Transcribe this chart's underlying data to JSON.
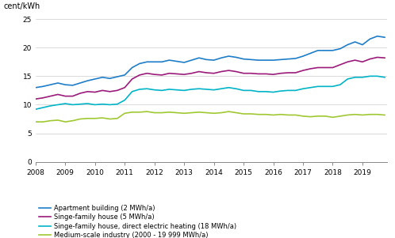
{
  "title": "",
  "ylabel": "cent/kWh",
  "xlim": [
    2008.0,
    2019.83
  ],
  "ylim": [
    0,
    25
  ],
  "yticks": [
    0,
    5,
    10,
    15,
    20,
    25
  ],
  "xticks": [
    2008,
    2009,
    2010,
    2011,
    2012,
    2013,
    2014,
    2015,
    2016,
    2017,
    2018,
    2019
  ],
  "colors": {
    "apartment": "#1e7dc8",
    "single_family": "#9b1a7a",
    "direct_heating": "#00b4c8",
    "industry": "#a0c832"
  },
  "legend_labels": [
    "Apartment building (2 MWh/a)",
    "Singe-family house (5 MWh/a)",
    "Singe-family house, direct electric heating (18 MWh/a)",
    "Medium-scale industry (2000 - 19 999 MWh/a)"
  ],
  "apartment": [
    13.0,
    13.2,
    13.5,
    13.8,
    13.5,
    13.4,
    13.8,
    14.2,
    14.5,
    14.8,
    14.6,
    14.9,
    15.2,
    16.5,
    17.2,
    17.5,
    17.5,
    17.5,
    17.8,
    17.6,
    17.4,
    17.8,
    18.2,
    17.9,
    17.8,
    18.2,
    18.5,
    18.3,
    18.0,
    17.9,
    17.8,
    17.8,
    17.8,
    17.9,
    18.0,
    18.1,
    18.5,
    19.0,
    19.5,
    19.5,
    19.5,
    19.8,
    20.5,
    21.0,
    20.5,
    21.5,
    22.0,
    21.8
  ],
  "single_family": [
    11.0,
    11.2,
    11.5,
    11.8,
    11.5,
    11.5,
    12.0,
    12.3,
    12.2,
    12.5,
    12.3,
    12.5,
    13.0,
    14.5,
    15.2,
    15.5,
    15.3,
    15.2,
    15.5,
    15.4,
    15.3,
    15.5,
    15.8,
    15.6,
    15.5,
    15.8,
    16.0,
    15.8,
    15.5,
    15.5,
    15.4,
    15.4,
    15.3,
    15.5,
    15.6,
    15.6,
    16.0,
    16.3,
    16.5,
    16.5,
    16.5,
    17.0,
    17.5,
    17.8,
    17.5,
    18.0,
    18.3,
    18.2
  ],
  "direct_heating": [
    9.2,
    9.5,
    9.8,
    10.0,
    10.2,
    10.0,
    10.1,
    10.2,
    10.0,
    10.1,
    10.0,
    10.1,
    10.8,
    12.3,
    12.7,
    12.8,
    12.6,
    12.5,
    12.7,
    12.6,
    12.5,
    12.7,
    12.8,
    12.7,
    12.6,
    12.8,
    13.0,
    12.8,
    12.5,
    12.5,
    12.3,
    12.3,
    12.2,
    12.4,
    12.5,
    12.5,
    12.8,
    13.0,
    13.2,
    13.2,
    13.2,
    13.5,
    14.5,
    14.8,
    14.8,
    15.0,
    15.0,
    14.8
  ],
  "industry": [
    7.0,
    7.0,
    7.2,
    7.3,
    7.0,
    7.2,
    7.5,
    7.6,
    7.6,
    7.7,
    7.5,
    7.6,
    8.5,
    8.7,
    8.7,
    8.8,
    8.6,
    8.6,
    8.7,
    8.6,
    8.5,
    8.6,
    8.7,
    8.6,
    8.5,
    8.6,
    8.8,
    8.6,
    8.4,
    8.4,
    8.3,
    8.3,
    8.2,
    8.3,
    8.2,
    8.2,
    8.0,
    7.9,
    8.0,
    8.0,
    7.8,
    8.0,
    8.2,
    8.3,
    8.2,
    8.3,
    8.3,
    8.2
  ]
}
